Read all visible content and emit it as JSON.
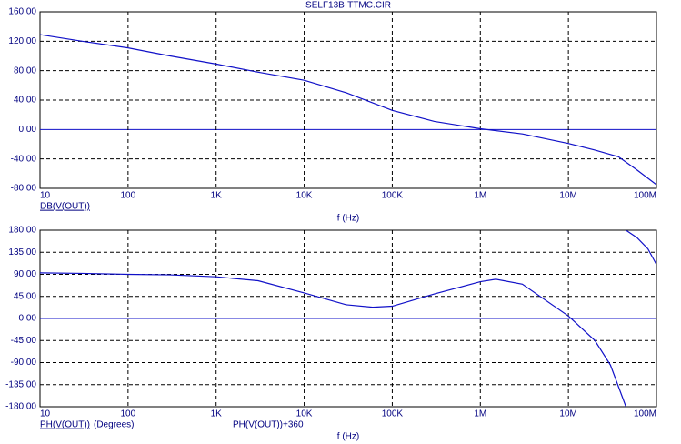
{
  "chart_data": [
    {
      "type": "line",
      "title": "SELF13B-TTMC.CIR",
      "xlabel": "f (Hz)",
      "xscale": "log",
      "xlim": [
        10,
        100000000
      ],
      "xticks": [
        10,
        100,
        {
          "value": 1000,
          "label": "1K"
        },
        {
          "value": 10000,
          "label": "10K"
        },
        {
          "value": 100000,
          "label": "100K"
        },
        {
          "value": 1000000,
          "label": "1M"
        },
        {
          "value": 10000000,
          "label": "10M"
        },
        {
          "value": 100000000,
          "label": "100M"
        }
      ],
      "ylim": [
        -80,
        160
      ],
      "yticks": [
        {
          "value": 160,
          "label": "160.00"
        },
        {
          "value": 120,
          "label": "120.00"
        },
        {
          "value": 80,
          "label": "80.00"
        },
        {
          "value": 40,
          "label": "40.00"
        },
        {
          "value": 0,
          "label": "0.00"
        },
        {
          "value": -40,
          "label": "-40.00"
        },
        {
          "value": -80,
          "label": "-80.00"
        }
      ],
      "grid": true,
      "zero_line": true,
      "series": [
        {
          "name": "DB(V(OUT))",
          "color": "#1010c8",
          "x": [
            10,
            30,
            100,
            300,
            1000,
            3000,
            10000,
            30000,
            100000,
            300000,
            1000000,
            3000000,
            10000000,
            20000000,
            37000000,
            60000000,
            100000000
          ],
          "values": [
            129,
            120,
            111,
            100,
            89,
            78,
            67,
            50,
            26,
            11,
            1,
            -6,
            -19,
            -28,
            -37,
            -55,
            -75
          ]
        }
      ]
    },
    {
      "type": "line",
      "xlabel": "f (Hz)",
      "ylabel": "(Degrees)",
      "xscale": "log",
      "xlim": [
        10,
        100000000
      ],
      "xticks": [
        10,
        100,
        {
          "value": 1000,
          "label": "1K"
        },
        {
          "value": 10000,
          "label": "10K"
        },
        {
          "value": 100000,
          "label": "100K"
        },
        {
          "value": 1000000,
          "label": "1M"
        },
        {
          "value": 10000000,
          "label": "10M"
        },
        {
          "value": 100000000,
          "label": "100M"
        }
      ],
      "ylim": [
        -180,
        180
      ],
      "yticks": [
        {
          "value": 180,
          "label": "180.00"
        },
        {
          "value": 135,
          "label": "135.00"
        },
        {
          "value": 90,
          "label": "90.00"
        },
        {
          "value": 45,
          "label": "45.00"
        },
        {
          "value": 0,
          "label": "0.00"
        },
        {
          "value": -45,
          "label": "-45.00"
        },
        {
          "value": -90,
          "label": "-90.00"
        },
        {
          "value": -135,
          "label": "-135.00"
        },
        {
          "value": -180,
          "label": "-180.00"
        }
      ],
      "grid": true,
      "zero_line": true,
      "series": [
        {
          "name": "PH(V(OUT))",
          "color": "#1010c8",
          "x": [
            10,
            30,
            100,
            300,
            1000,
            3000,
            10000,
            30000,
            60000,
            100000,
            300000,
            1000000,
            1500000,
            3000000,
            10000000,
            20000000,
            30000000,
            45000000
          ],
          "values": [
            93,
            92,
            90,
            89,
            85,
            77,
            52,
            28,
            23,
            25,
            50,
            75,
            80,
            70,
            5,
            -45,
            -95,
            -180
          ]
        },
        {
          "name": "PH(V(OUT))+360",
          "color": "#1010c8",
          "x": [
            45000000,
            60000000,
            80000000,
            100000000
          ],
          "values": [
            180,
            165,
            142,
            110
          ]
        }
      ]
    }
  ]
}
